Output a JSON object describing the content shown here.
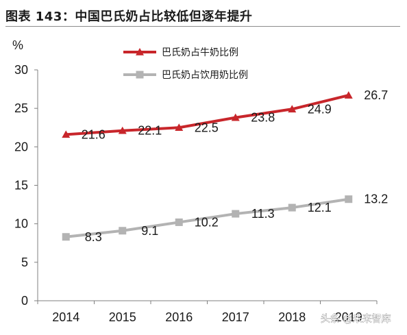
{
  "header": {
    "title": "图表 143：中国巴氏奶占比较低但逐年提升"
  },
  "watermark": "头条 @未来智库",
  "chart_data": {
    "type": "line",
    "title": "图表 143：中国巴氏奶占比较低但逐年提升",
    "ylabel": "%",
    "xlabel": "",
    "x": [
      "2014",
      "2015",
      "2016",
      "2017",
      "2018",
      "2019"
    ],
    "ylim": [
      0,
      30
    ],
    "yticks": [
      0,
      5,
      10,
      15,
      20,
      25,
      30
    ],
    "legend_position": "top-center",
    "series": [
      {
        "name": "巴氏奶占牛奶比例",
        "values": [
          21.6,
          22.1,
          22.5,
          23.8,
          24.9,
          26.7
        ],
        "labels": [
          "21.6",
          "22.1",
          "22.5",
          "23.8",
          "24.9",
          "26.7"
        ],
        "color": "#c8262b",
        "marker": "triangle"
      },
      {
        "name": "巴氏奶占饮用奶比例",
        "values": [
          8.3,
          9.1,
          10.2,
          11.3,
          12.1,
          13.2
        ],
        "labels": [
          "8.3",
          "9.1",
          "10.2",
          "11.3",
          "12.1",
          "13.2"
        ],
        "color": "#b3b3b3",
        "marker": "square"
      }
    ]
  }
}
